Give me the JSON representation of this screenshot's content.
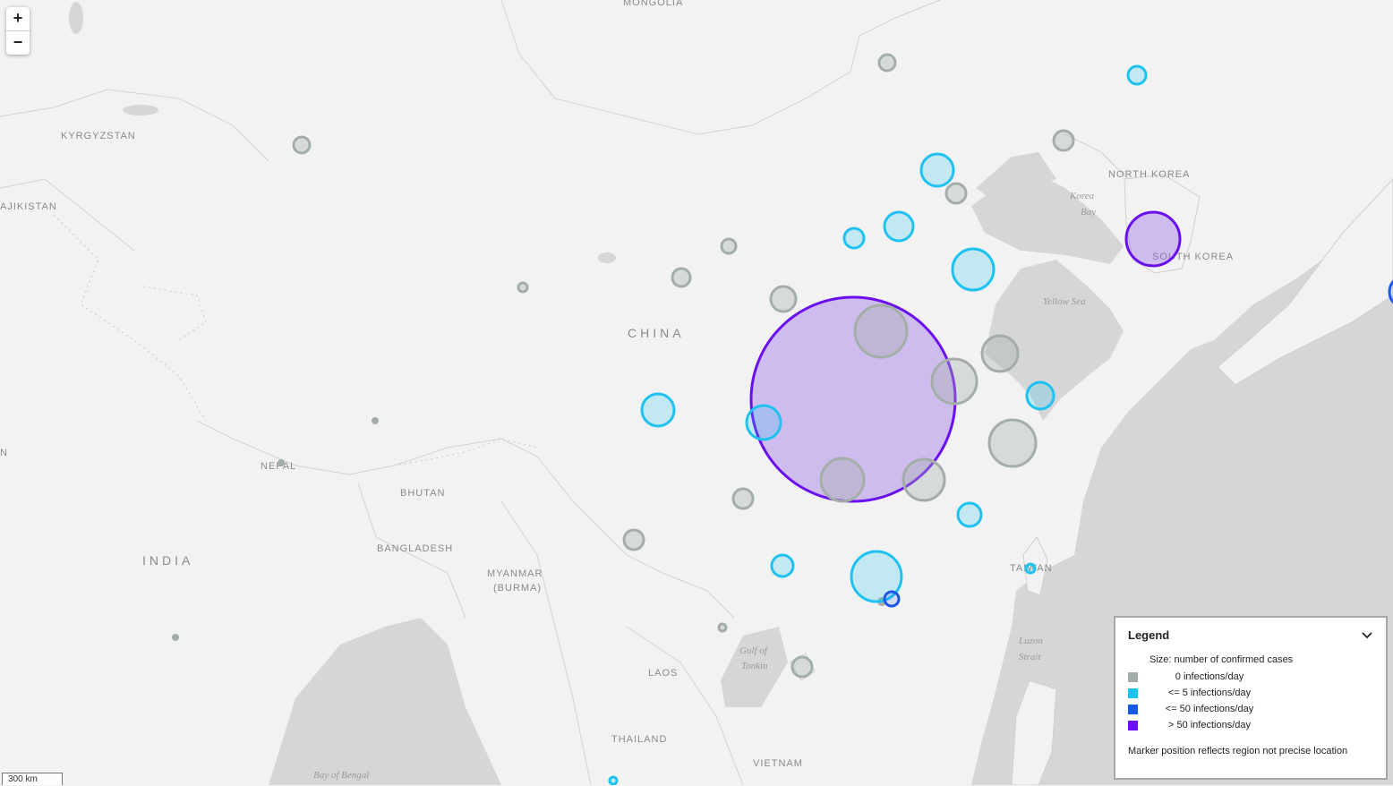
{
  "map": {
    "labels": {
      "mongolia": "MONGOLIA",
      "kyrgyzstan": "KYRGYZSTAN",
      "tajikistan": "AJIKISTAN",
      "china": "CHINA",
      "north_korea": "NORTH KOREA",
      "south_korea": "SOUTH KOREA",
      "korea_bay_1": "Korea",
      "korea_bay_2": "Bay",
      "yellow_sea": "Yellow Sea",
      "nepal": "NEPAL",
      "bhutan": "BHUTAN",
      "bangladesh": "BANGLADESH",
      "india": "INDIA",
      "myanmar_1": "MYANMAR",
      "myanmar_2": "(BURMA)",
      "taiwan": "TAIWAN",
      "luzon_1": "Luzon",
      "luzon_2": "Strait",
      "gulf_1": "Gulf of",
      "gulf_2": "Tonkin",
      "laos": "LAOS",
      "thailand": "THAILAND",
      "vietnam": "VIETNAM",
      "bay_of_bengal": "Bay of Bengal",
      "edge_n": "N"
    }
  },
  "zoom": {
    "in_label": "+",
    "out_label": "−"
  },
  "scale_bar": {
    "label": "300 km"
  },
  "legend": {
    "title": "Legend",
    "toggle_icon": "chevron-down-icon",
    "subtitle": "Size: number of confirmed cases",
    "items": [
      {
        "label": "0 infections/day",
        "color": "#a3aea8"
      },
      {
        "label": "<= 5 infections/day",
        "color": "#1ec2f0"
      },
      {
        "label": "<= 50 infections/day",
        "color": "#1a56e8"
      },
      {
        "label": "> 50 infections/day",
        "color": "#6a10f0"
      }
    ],
    "footnote": "Marker position reflects region not precise location"
  },
  "colors": {
    "land": "#f2f2f2",
    "water": "#d6d6d8",
    "border": "#d0d0d0",
    "gray_marker": "#a3aea8",
    "cyan_marker": "#1ec2f0",
    "blue_marker": "#1a56e8",
    "purple_marker": "#6a10f0"
  }
}
